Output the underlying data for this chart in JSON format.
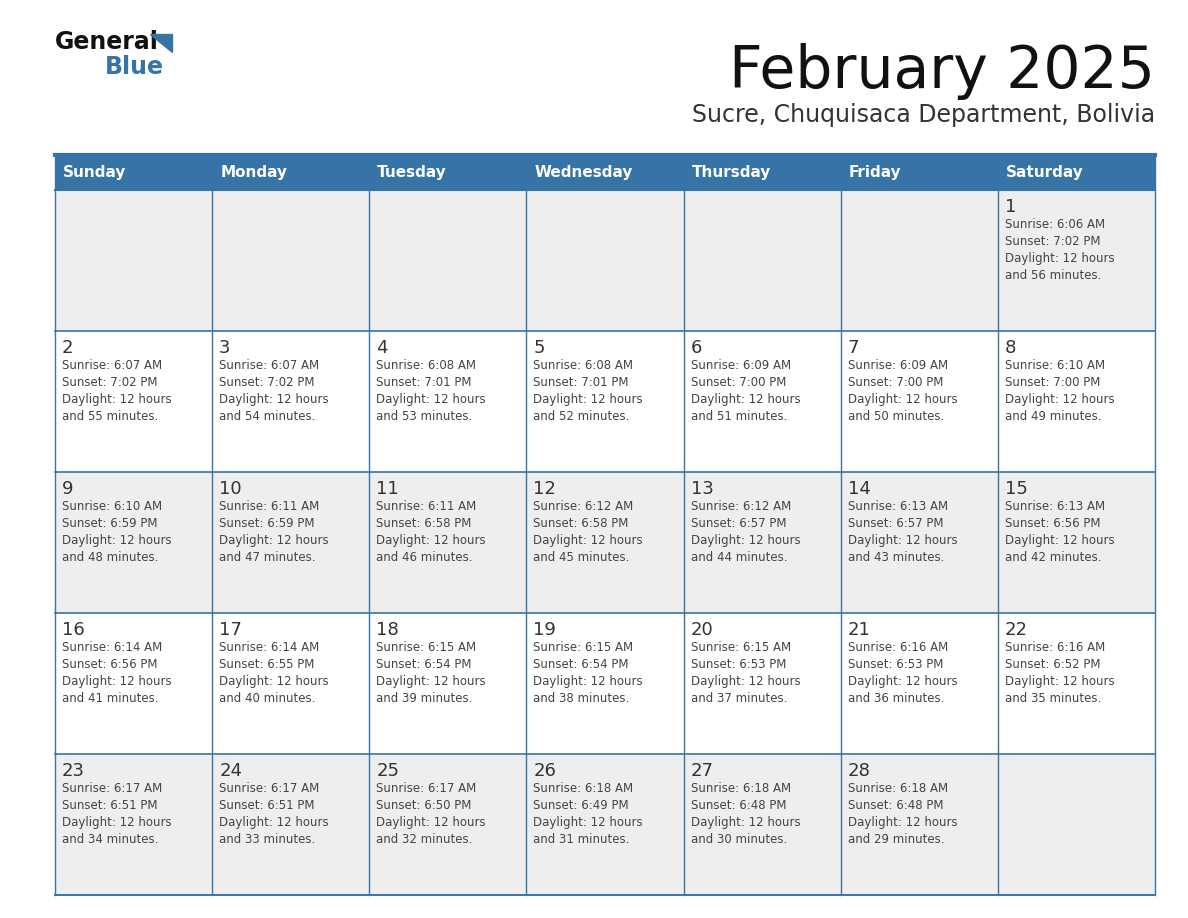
{
  "title": "February 2025",
  "subtitle": "Sucre, Chuquisaca Department, Bolivia",
  "header_color": "#3674a8",
  "header_text_color": "#ffffff",
  "cell_bg_color": "#ffffff",
  "cell_alt_bg_color": "#eeeeee",
  "border_color": "#3674a8",
  "day_number_color": "#333333",
  "cell_text_color": "#444444",
  "title_color": "#111111",
  "subtitle_color": "#333333",
  "days_of_week": [
    "Sunday",
    "Monday",
    "Tuesday",
    "Wednesday",
    "Thursday",
    "Friday",
    "Saturday"
  ],
  "num_cols": 7,
  "num_rows": 5,
  "logo_general_color": "#111111",
  "logo_blue_color": "#3674a8",
  "calendar_data": [
    [
      null,
      null,
      null,
      null,
      null,
      null,
      {
        "day": 1,
        "sunrise": "6:06 AM",
        "sunset": "7:02 PM",
        "daylight_hours": 12,
        "daylight_minutes": 56
      }
    ],
    [
      {
        "day": 2,
        "sunrise": "6:07 AM",
        "sunset": "7:02 PM",
        "daylight_hours": 12,
        "daylight_minutes": 55
      },
      {
        "day": 3,
        "sunrise": "6:07 AM",
        "sunset": "7:02 PM",
        "daylight_hours": 12,
        "daylight_minutes": 54
      },
      {
        "day": 4,
        "sunrise": "6:08 AM",
        "sunset": "7:01 PM",
        "daylight_hours": 12,
        "daylight_minutes": 53
      },
      {
        "day": 5,
        "sunrise": "6:08 AM",
        "sunset": "7:01 PM",
        "daylight_hours": 12,
        "daylight_minutes": 52
      },
      {
        "day": 6,
        "sunrise": "6:09 AM",
        "sunset": "7:00 PM",
        "daylight_hours": 12,
        "daylight_minutes": 51
      },
      {
        "day": 7,
        "sunrise": "6:09 AM",
        "sunset": "7:00 PM",
        "daylight_hours": 12,
        "daylight_minutes": 50
      },
      {
        "day": 8,
        "sunrise": "6:10 AM",
        "sunset": "7:00 PM",
        "daylight_hours": 12,
        "daylight_minutes": 49
      }
    ],
    [
      {
        "day": 9,
        "sunrise": "6:10 AM",
        "sunset": "6:59 PM",
        "daylight_hours": 12,
        "daylight_minutes": 48
      },
      {
        "day": 10,
        "sunrise": "6:11 AM",
        "sunset": "6:59 PM",
        "daylight_hours": 12,
        "daylight_minutes": 47
      },
      {
        "day": 11,
        "sunrise": "6:11 AM",
        "sunset": "6:58 PM",
        "daylight_hours": 12,
        "daylight_minutes": 46
      },
      {
        "day": 12,
        "sunrise": "6:12 AM",
        "sunset": "6:58 PM",
        "daylight_hours": 12,
        "daylight_minutes": 45
      },
      {
        "day": 13,
        "sunrise": "6:12 AM",
        "sunset": "6:57 PM",
        "daylight_hours": 12,
        "daylight_minutes": 44
      },
      {
        "day": 14,
        "sunrise": "6:13 AM",
        "sunset": "6:57 PM",
        "daylight_hours": 12,
        "daylight_minutes": 43
      },
      {
        "day": 15,
        "sunrise": "6:13 AM",
        "sunset": "6:56 PM",
        "daylight_hours": 12,
        "daylight_minutes": 42
      }
    ],
    [
      {
        "day": 16,
        "sunrise": "6:14 AM",
        "sunset": "6:56 PM",
        "daylight_hours": 12,
        "daylight_minutes": 41
      },
      {
        "day": 17,
        "sunrise": "6:14 AM",
        "sunset": "6:55 PM",
        "daylight_hours": 12,
        "daylight_minutes": 40
      },
      {
        "day": 18,
        "sunrise": "6:15 AM",
        "sunset": "6:54 PM",
        "daylight_hours": 12,
        "daylight_minutes": 39
      },
      {
        "day": 19,
        "sunrise": "6:15 AM",
        "sunset": "6:54 PM",
        "daylight_hours": 12,
        "daylight_minutes": 38
      },
      {
        "day": 20,
        "sunrise": "6:15 AM",
        "sunset": "6:53 PM",
        "daylight_hours": 12,
        "daylight_minutes": 37
      },
      {
        "day": 21,
        "sunrise": "6:16 AM",
        "sunset": "6:53 PM",
        "daylight_hours": 12,
        "daylight_minutes": 36
      },
      {
        "day": 22,
        "sunrise": "6:16 AM",
        "sunset": "6:52 PM",
        "daylight_hours": 12,
        "daylight_minutes": 35
      }
    ],
    [
      {
        "day": 23,
        "sunrise": "6:17 AM",
        "sunset": "6:51 PM",
        "daylight_hours": 12,
        "daylight_minutes": 34
      },
      {
        "day": 24,
        "sunrise": "6:17 AM",
        "sunset": "6:51 PM",
        "daylight_hours": 12,
        "daylight_minutes": 33
      },
      {
        "day": 25,
        "sunrise": "6:17 AM",
        "sunset": "6:50 PM",
        "daylight_hours": 12,
        "daylight_minutes": 32
      },
      {
        "day": 26,
        "sunrise": "6:18 AM",
        "sunset": "6:49 PM",
        "daylight_hours": 12,
        "daylight_minutes": 31
      },
      {
        "day": 27,
        "sunrise": "6:18 AM",
        "sunset": "6:48 PM",
        "daylight_hours": 12,
        "daylight_minutes": 30
      },
      {
        "day": 28,
        "sunrise": "6:18 AM",
        "sunset": "6:48 PM",
        "daylight_hours": 12,
        "daylight_minutes": 29
      },
      null
    ]
  ],
  "row_bg_colors": [
    "#eeeeee",
    "#ffffff",
    "#eeeeee",
    "#ffffff",
    "#eeeeee"
  ]
}
